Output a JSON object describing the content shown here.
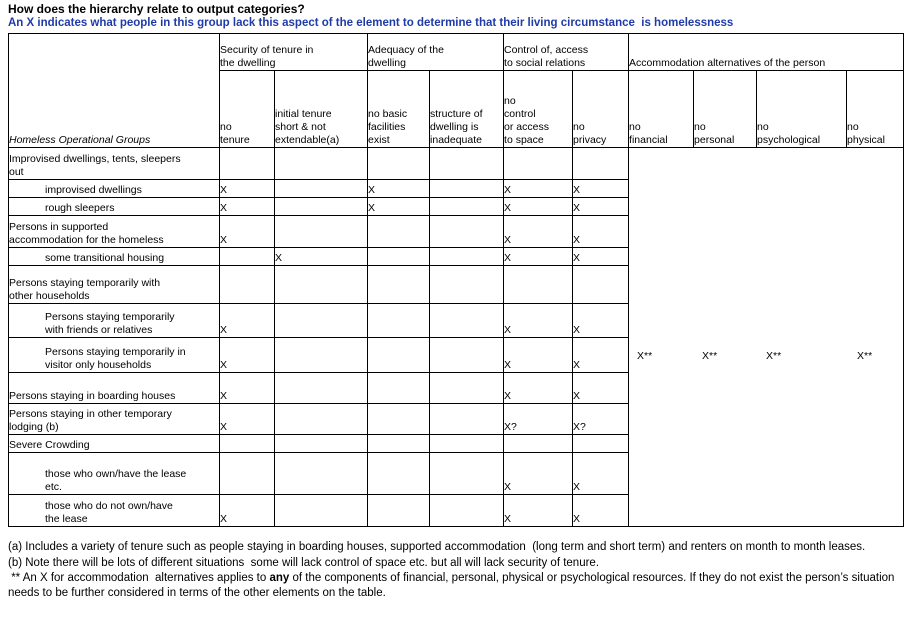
{
  "page": {
    "title": "How does the hierarchy relate to output categories?",
    "subtitle": "An X indicates what people in this group lack this aspect of the element to determine that their living circumstance  is homelessness",
    "subtitle_color": "#1F3BA8",
    "border_color": "#000000",
    "background_color": "#FFFFFF"
  },
  "table": {
    "row_header_title": "Homeless  Operational Groups",
    "groups": [
      {
        "label": "Security of tenure in\nthe dwelling",
        "span": 2
      },
      {
        "label": "Adequacy of the\ndwelling",
        "span": 2
      },
      {
        "label": "Control of, access\nto social relations",
        "span": 2
      },
      {
        "label": "Accommodation alternatives of the person",
        "span": 4
      }
    ],
    "columns": [
      "no\ntenure",
      "initial tenure\nshort & not\nextendable(a)",
      "no basic\nfacilities\nexist",
      "structure of\ndwelling is\ninadequate",
      "no\ncontrol\nor access\nto space",
      "no\nprivacy",
      "no\nfinancial",
      "no\npersonal",
      "no\npsychological",
      "no\nphysical"
    ],
    "rows": [
      {
        "label": "Improvised dwellings, tents, sleepers\nout",
        "indent": false,
        "marks": [
          "",
          "",
          "",
          "",
          "",
          ""
        ]
      },
      {
        "label": "improvised dwellings",
        "indent": true,
        "marks": [
          "X",
          "",
          "X",
          "",
          "X",
          "X"
        ]
      },
      {
        "label": "rough sleepers",
        "indent": true,
        "marks": [
          "X",
          "",
          "X",
          "",
          "X",
          "X"
        ]
      },
      {
        "label": "Persons in supported\naccommodation  for the homeless",
        "indent": false,
        "marks": [
          "X",
          "",
          "",
          "",
          "X",
          "X"
        ]
      },
      {
        "label": "some transitional housing",
        "indent": true,
        "marks": [
          "",
          "X",
          "",
          "",
          "X",
          "X"
        ]
      },
      {
        "label": "Persons staying temporarily with\nother households",
        "indent": false,
        "marks": [
          "",
          "",
          "",
          "",
          "",
          ""
        ]
      },
      {
        "label": "Persons staying temporarily\nwith friends or relatives",
        "indent": true,
        "marks": [
          "X",
          "",
          "",
          "",
          "X",
          "X"
        ]
      },
      {
        "label": "Persons staying temporarily in\nvisitor only households",
        "indent": true,
        "marks": [
          "X",
          "",
          "",
          "",
          "X",
          "X"
        ]
      },
      {
        "label": "Persons staying in boarding houses",
        "indent": false,
        "marks": [
          "X",
          "",
          "",
          "",
          "X",
          "X"
        ]
      },
      {
        "label": "Persons staying in other temporary\nlodging (b)",
        "indent": false,
        "marks": [
          "X",
          "",
          "",
          "",
          "X?",
          "X?"
        ]
      },
      {
        "label": "Severe Crowding",
        "indent": false,
        "marks": [
          "",
          "",
          "",
          "",
          "",
          ""
        ]
      },
      {
        "label": "those who own/have the lease\netc.",
        "indent": true,
        "marks": [
          "",
          "",
          "",
          "",
          "X",
          "X"
        ]
      },
      {
        "label": "those who do not own/have\nthe lease",
        "indent": true,
        "marks": [
          "X",
          "",
          "",
          "",
          "X",
          "X"
        ]
      }
    ],
    "accommodation_marks": [
      "X**",
      "X**",
      "X**",
      "X**"
    ]
  },
  "footnotes": [
    {
      "text": "(a) Includes a variety of tenure such as people staying in boarding houses, supported accommodation  (long term and short term) and renters on month to month leases."
    },
    {
      "text": "(b) Note there will be lots of different situations  some will lack control of space etc. but all will lack security of tenure."
    },
    {
      "prefix": " ** An X for accommodation  alternatives applies to ",
      "bold": "any",
      "suffix": " of the components of financial, personal, physical or psychological resources. If they do not exist the person’s situation  needs to be further considered in terms of the other elements on the table."
    }
  ]
}
